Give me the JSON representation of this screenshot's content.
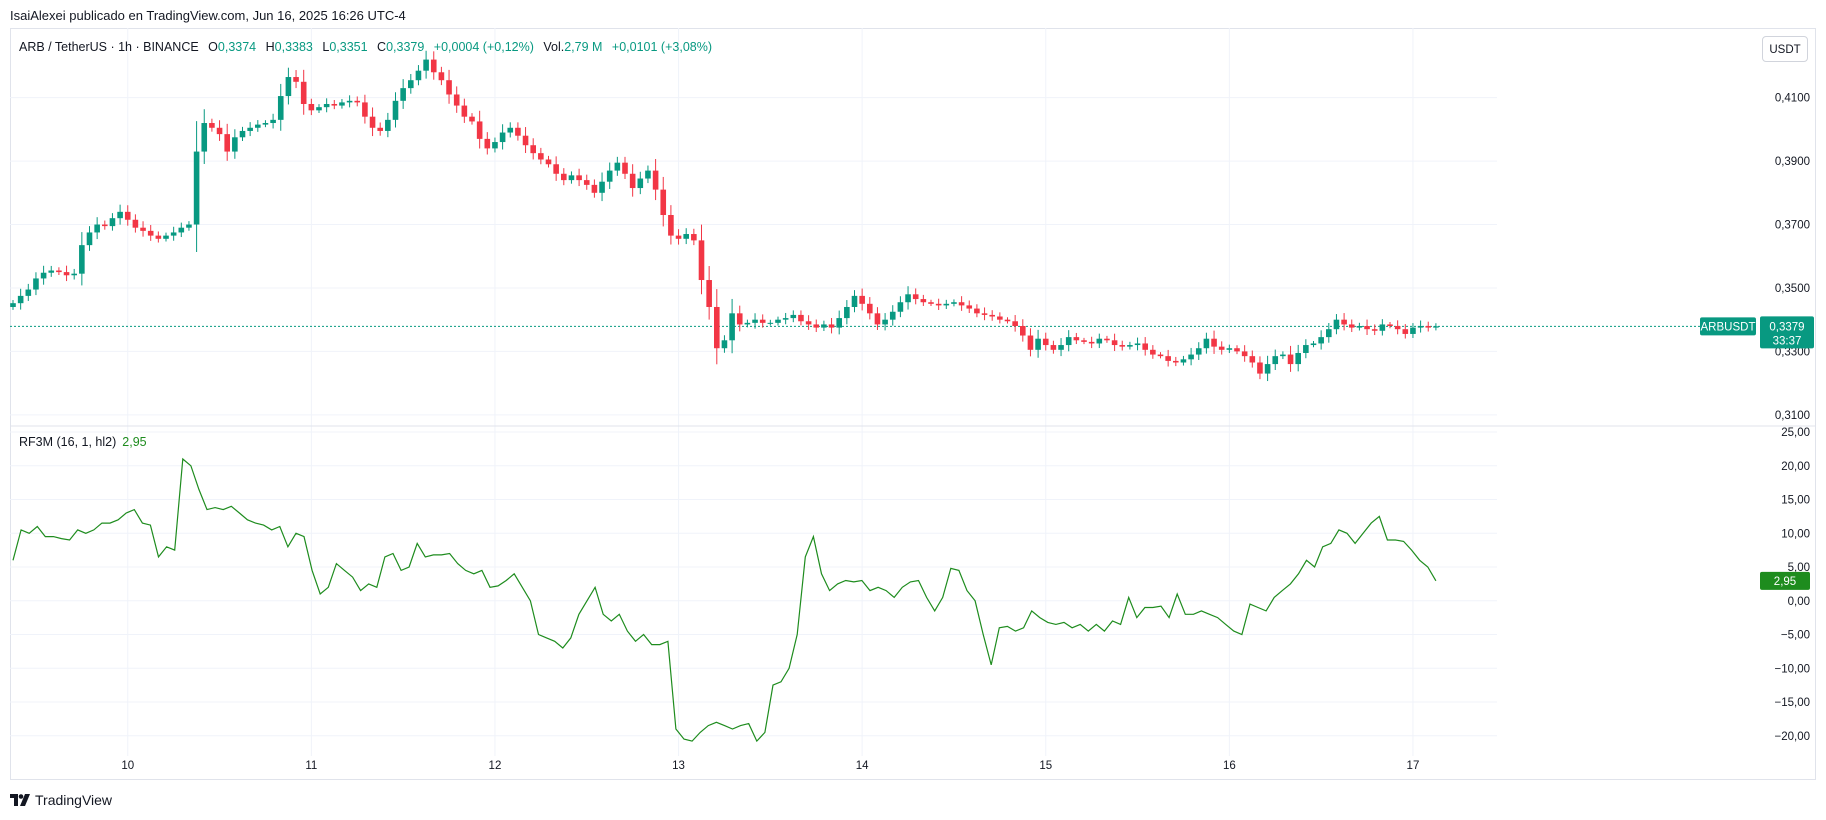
{
  "header": {
    "caption": "IsaiAlexei publicado en TradingView.com, Jun 16, 2025 16:26 UTC-4"
  },
  "legend": {
    "symbol": "ARB / TetherUS · 1h · BINANCE",
    "open_label": "O",
    "open": "0,3374",
    "high_label": "H",
    "high": "0,3383",
    "low_label": "L",
    "low": "0,3351",
    "close_label": "C",
    "close": "0,3379",
    "change": "+0,0004 (+0,12%)",
    "volume_label": "Vol.",
    "volume": "2,79 M",
    "volume_change": "+0,0101 (+3,08%)"
  },
  "currency_button": "USDT",
  "price_tag": {
    "symbol": "ARBUSDT",
    "price": "0,3379",
    "countdown": "33:37"
  },
  "indicator": {
    "name": "RF3M (16, 1, hl2)",
    "value": "2,95",
    "value_number": 2.95
  },
  "footer": {
    "brand": "TradingView"
  },
  "colors": {
    "up": "#089981",
    "down": "#f23645",
    "indicator_line": "#1e8c1e",
    "indicator_badge": "#1e8c1e",
    "price_line": "#089981"
  },
  "chart_data": [
    {
      "type": "candlestick",
      "title": "ARB / TetherUS · 1h · BINANCE",
      "x_ticks": [
        "10",
        "11",
        "12",
        "13",
        "14",
        "15",
        "16",
        "17"
      ],
      "y_ticks": [
        "0,4100",
        "0,3900",
        "0,3700",
        "0,3500",
        "0,3300",
        "0,3100"
      ],
      "y_range": [
        0.309,
        0.4225
      ],
      "last_price": 0.3379,
      "series": [
        {
          "name": "ARB / TetherUS",
          "close_values": [
            0.3452,
            0.3475,
            0.3495,
            0.353,
            0.3548,
            0.3555,
            0.355,
            0.354,
            0.3545,
            0.3635,
            0.3675,
            0.37,
            0.3695,
            0.372,
            0.374,
            0.3715,
            0.369,
            0.368,
            0.3665,
            0.3655,
            0.3665,
            0.3675,
            0.369,
            0.37,
            0.393,
            0.402,
            0.4005,
            0.3985,
            0.393,
            0.3975,
            0.3995,
            0.4005,
            0.4015,
            0.402,
            0.403,
            0.4105,
            0.4165,
            0.415,
            0.408,
            0.406,
            0.407,
            0.408,
            0.4075,
            0.4085,
            0.409,
            0.4085,
            0.404,
            0.4005,
            0.3995,
            0.403,
            0.409,
            0.413,
            0.4155,
            0.4185,
            0.422,
            0.418,
            0.4155,
            0.411,
            0.4075,
            0.404,
            0.4025,
            0.397,
            0.394,
            0.396,
            0.399,
            0.4005,
            0.398,
            0.395,
            0.3925,
            0.3905,
            0.389,
            0.386,
            0.384,
            0.3855,
            0.384,
            0.3825,
            0.38,
            0.3835,
            0.387,
            0.3895,
            0.386,
            0.3815,
            0.3845,
            0.387,
            0.381,
            0.373,
            0.3665,
            0.3655,
            0.367,
            0.365,
            0.3525,
            0.344,
            0.331,
            0.3335,
            0.342,
            0.3385,
            0.339,
            0.34,
            0.339,
            0.339,
            0.34,
            0.3405,
            0.3415,
            0.3395,
            0.3385,
            0.3375,
            0.3385,
            0.3375,
            0.3405,
            0.344,
            0.3475,
            0.345,
            0.342,
            0.3385,
            0.34,
            0.3425,
            0.3455,
            0.348,
            0.3465,
            0.3455,
            0.345,
            0.3445,
            0.345,
            0.3455,
            0.3445,
            0.3435,
            0.342,
            0.3415,
            0.341,
            0.34,
            0.3395,
            0.338,
            0.335,
            0.3305,
            0.334,
            0.332,
            0.3305,
            0.332,
            0.3345,
            0.3335,
            0.333,
            0.3325,
            0.334,
            0.3335,
            0.332,
            0.3315,
            0.332,
            0.3325,
            0.3305,
            0.329,
            0.3285,
            0.327,
            0.3265,
            0.3275,
            0.329,
            0.331,
            0.334,
            0.3315,
            0.3305,
            0.331,
            0.33,
            0.3285,
            0.3265,
            0.323,
            0.326,
            0.3285,
            0.329,
            0.326,
            0.3295,
            0.332,
            0.3325,
            0.3345,
            0.337,
            0.34,
            0.3385,
            0.3375,
            0.338,
            0.337,
            0.3365,
            0.3385,
            0.338,
            0.337,
            0.3355,
            0.3375,
            0.338,
            0.3375,
            0.3379
          ]
        }
      ]
    },
    {
      "type": "line",
      "title": "RF3M (16, 1, hl2)",
      "y_ticks": [
        "25,00",
        "20,00",
        "15,00",
        "10,00",
        "5,00",
        "0,00",
        "−5,00",
        "−10,00",
        "−15,00",
        "−20,00"
      ],
      "y_range": [
        -23,
        25
      ],
      "series": [
        {
          "name": "RF3M (16, 1, hl2)",
          "values": [
            6.0,
            10.5,
            10.0,
            11.0,
            9.5,
            9.5,
            9.2,
            9.0,
            10.5,
            10.0,
            10.5,
            11.5,
            11.5,
            12.0,
            13.0,
            13.5,
            11.5,
            11.2,
            6.5,
            8.0,
            7.5,
            21.0,
            20.0,
            16.5,
            13.5,
            13.8,
            13.5,
            14.0,
            13.0,
            12.0,
            11.5,
            11.2,
            10.5,
            11.0,
            8.0,
            10.0,
            9.5,
            4.5,
            1.0,
            2.0,
            5.5,
            4.5,
            3.5,
            1.5,
            2.5,
            2.0,
            6.5,
            7.0,
            4.5,
            5.0,
            8.5,
            6.5,
            6.8,
            6.8,
            7.0,
            5.5,
            4.5,
            4.0,
            4.5,
            2.0,
            2.2,
            3.0,
            4.0,
            2.0,
            0.0,
            -5.0,
            -5.5,
            -6.0,
            -7.0,
            -5.5,
            -2.0,
            0.0,
            2.0,
            -2.0,
            -3.0,
            -2.0,
            -4.5,
            -6.0,
            -5.0,
            -6.5,
            -6.5,
            -6.0,
            -19.0,
            -20.5,
            -20.8,
            -19.5,
            -18.5,
            -18.0,
            -18.5,
            -19.0,
            -18.5,
            -18.2,
            -20.8,
            -19.5,
            -12.5,
            -12.0,
            -10.0,
            -5.0,
            6.5,
            9.5,
            4.0,
            1.5,
            2.5,
            3.0,
            2.8,
            3.0,
            1.5,
            2.0,
            1.5,
            0.5,
            2.0,
            2.8,
            3.0,
            0.5,
            -1.5,
            0.5,
            4.8,
            4.5,
            1.5,
            0.0,
            -5.0,
            -9.5,
            -4.0,
            -3.8,
            -4.5,
            -4.0,
            -1.5,
            -2.5,
            -3.2,
            -3.5,
            -3.2,
            -4.0,
            -3.5,
            -4.5,
            -3.5,
            -4.5,
            -3.0,
            -3.5,
            0.5,
            -2.5,
            -1.0,
            -1.0,
            -0.8,
            -2.5,
            1.0,
            -2.0,
            -2.0,
            -1.5,
            -2.0,
            -2.5,
            -3.5,
            -4.5,
            -5.0,
            -0.5,
            -1.0,
            -1.5,
            0.5,
            1.5,
            2.5,
            4.0,
            6.0,
            5.0,
            8.0,
            8.5,
            10.5,
            10.0,
            8.5,
            10.0,
            11.5,
            12.5,
            9.0,
            9.0,
            8.8,
            7.5,
            6.0,
            5.0,
            2.95
          ]
        }
      ]
    }
  ]
}
